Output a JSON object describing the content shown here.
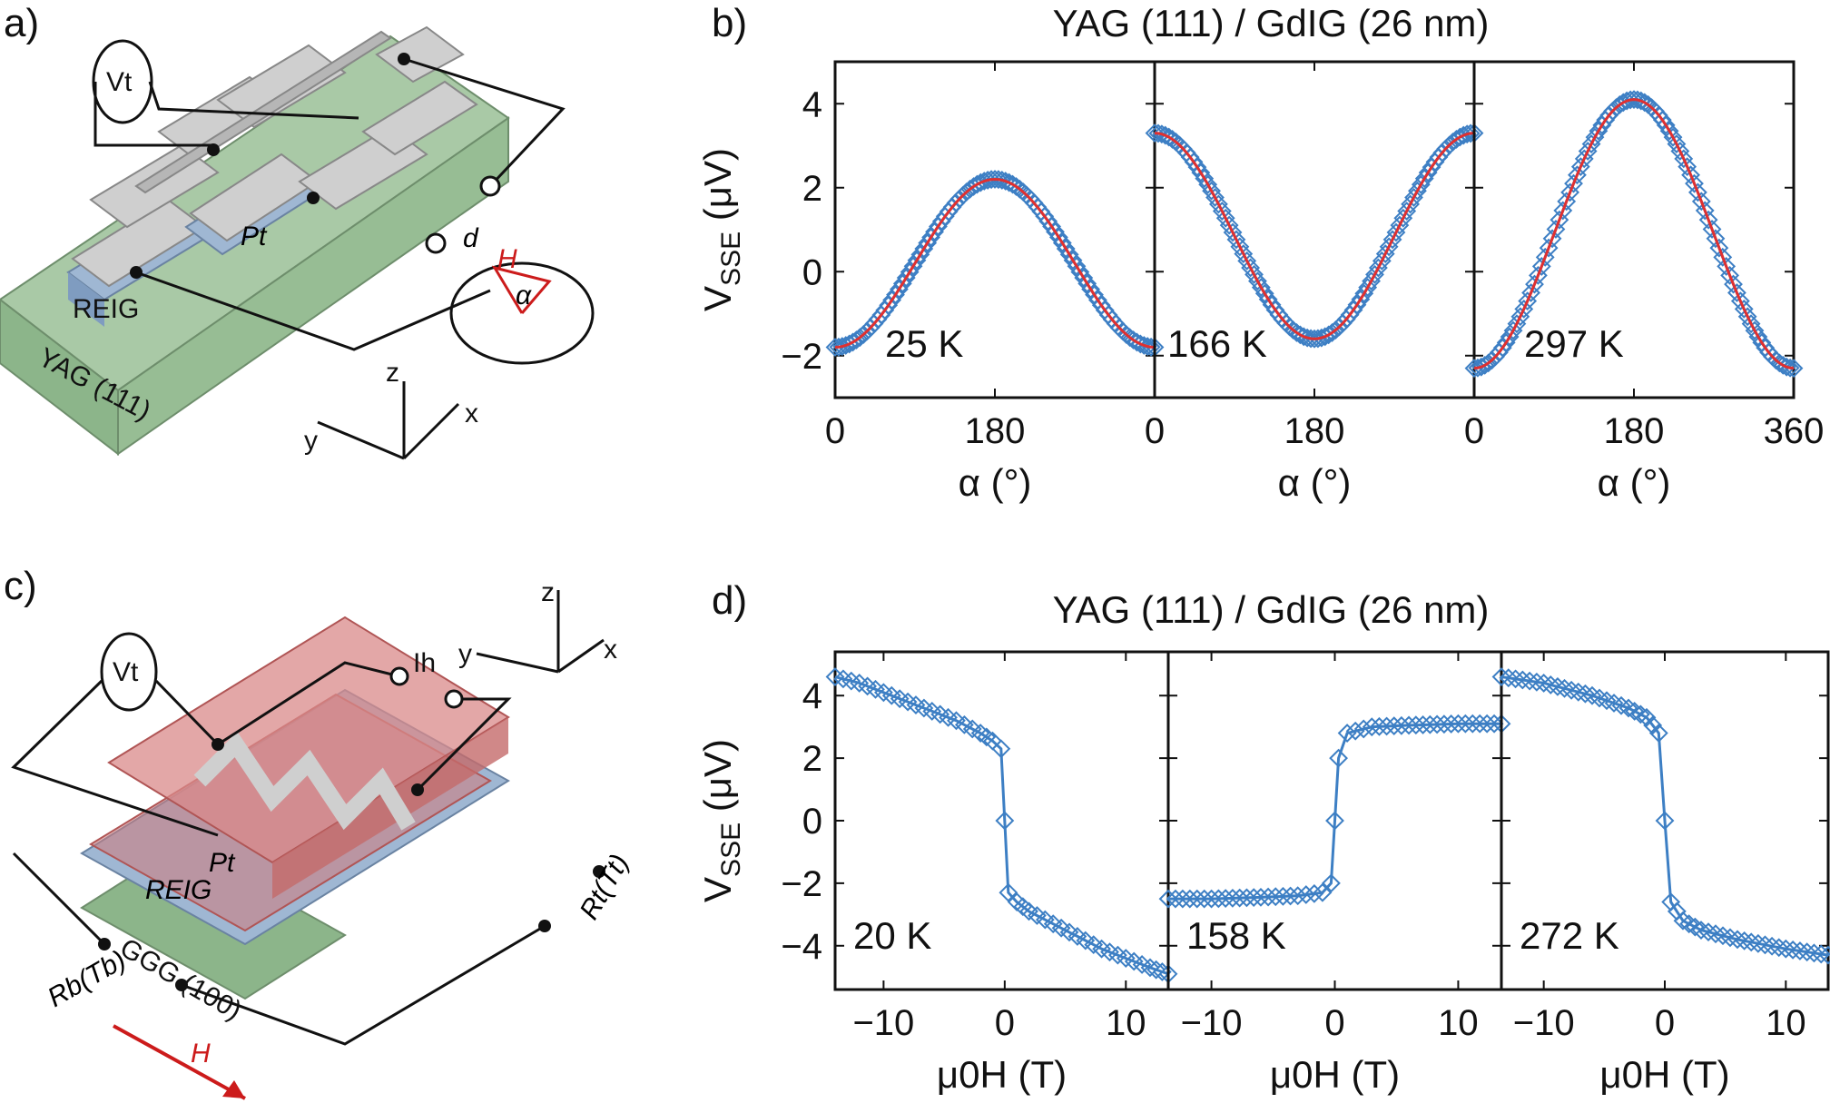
{
  "panel_labels": {
    "a": "a)",
    "b": "b)",
    "c": "c)",
    "d": "d)"
  },
  "schematic_a": {
    "voltmeter": "Vt",
    "metal": "Pt",
    "film": "REIG",
    "substrate": "YAG (111)",
    "field": "H",
    "angle": "α",
    "distance": "d",
    "axes": {
      "x": "x",
      "y": "y",
      "z": "z"
    }
  },
  "schematic_c": {
    "voltmeter": "Vt",
    "heater_current": "Ih",
    "metal": "Pt",
    "film": "REIG",
    "substrate": "GGG (100)",
    "top_thermometer": "Rt(Tt)",
    "bottom_thermometer": "Rb(Tb)",
    "field": "H",
    "axes": {
      "x": "x",
      "y": "y",
      "z": "z"
    }
  },
  "chart_data": [
    {
      "id": "b",
      "type": "scatter",
      "title": "YAG (111) / GdIG (26 nm)",
      "ylabel": "VSSE (μV)",
      "xlabel": "α (°)",
      "ylim": [
        -3,
        5
      ],
      "yticks": [
        -2,
        0,
        2,
        4
      ],
      "marker_color": "#3d7fc4",
      "fit_color": "#e03030",
      "subplots": [
        {
          "annotation": "25 K",
          "xlim": [
            0,
            360
          ],
          "xtick_labels": [
            "0",
            "180",
            ""
          ],
          "offset": 0.2,
          "amplitude": -2.0
        },
        {
          "annotation": "166 K",
          "xlim": [
            0,
            360
          ],
          "xtick_labels": [
            "0",
            "180",
            ""
          ],
          "offset": 0.85,
          "amplitude": 2.45
        },
        {
          "annotation": "297 K",
          "xlim": [
            0,
            360
          ],
          "xtick_labels": [
            "0",
            "180",
            "360"
          ],
          "offset": 0.9,
          "amplitude": -3.2
        }
      ]
    },
    {
      "id": "d",
      "type": "line",
      "title": "YAG (111) / GdIG (26 nm)",
      "ylabel": "VSSE (μV)",
      "xlabel": "μ0H (T)",
      "ylim": [
        -5.4,
        5.4
      ],
      "yticks": [
        -4,
        -2,
        0,
        2,
        4
      ],
      "marker_color": "#3d7fc4",
      "subplots": [
        {
          "annotation": "20 K",
          "xlim": [
            -14,
            13.5
          ],
          "xtick_labels": [
            "−10",
            "0",
            "10"
          ],
          "x": [
            -14,
            -12,
            -10,
            -8,
            -6,
            -4,
            -2,
            -1,
            -0.3,
            0,
            0.3,
            1,
            2,
            4,
            6,
            8,
            10,
            12,
            13.5
          ],
          "y": [
            4.6,
            4.4,
            4.1,
            3.8,
            3.5,
            3.2,
            2.8,
            2.55,
            2.3,
            0.0,
            -2.3,
            -2.6,
            -2.9,
            -3.3,
            -3.7,
            -4.1,
            -4.4,
            -4.7,
            -4.9
          ]
        },
        {
          "annotation": "158 K",
          "xlim": [
            -13.5,
            13.5
          ],
          "xtick_labels": [
            "−10",
            "0",
            "10"
          ],
          "x": [
            -13.5,
            -10,
            -6,
            -3,
            -1,
            -0.3,
            0,
            0.3,
            1,
            3,
            6,
            10,
            13.5
          ],
          "y": [
            -2.5,
            -2.5,
            -2.45,
            -2.4,
            -2.3,
            -2.0,
            0.0,
            2.0,
            2.8,
            3.0,
            3.05,
            3.1,
            3.1
          ]
        },
        {
          "annotation": "272 K",
          "xlim": [
            -13.5,
            13.5
          ],
          "xtick_labels": [
            "−10",
            "0",
            "10"
          ],
          "x": [
            -13.5,
            -10,
            -6,
            -3,
            -1.5,
            -0.5,
            0,
            0.5,
            1.5,
            3,
            6,
            10,
            13.5
          ],
          "y": [
            4.6,
            4.4,
            4.0,
            3.6,
            3.3,
            2.8,
            0.0,
            -2.6,
            -3.2,
            -3.5,
            -3.8,
            -4.1,
            -4.3
          ]
        }
      ]
    }
  ]
}
